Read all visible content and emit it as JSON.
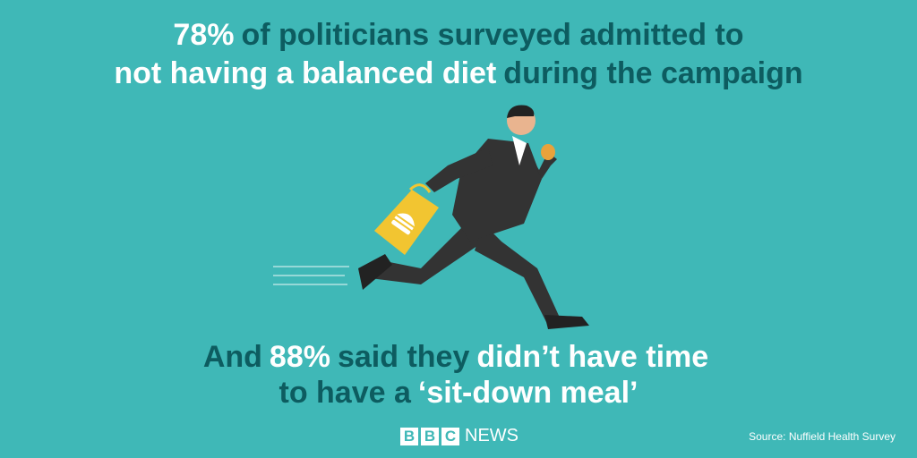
{
  "headline": [
    [
      "78%",
      "of politicians surveyed admitted to"
    ],
    [
      "not having a balanced diet",
      "during the campaign"
    ]
  ],
  "subline": [
    [
      "And",
      "88%",
      "said they",
      "didn’t have time"
    ],
    [
      "to have a",
      "‘sit-down meal’"
    ]
  ],
  "logo": {
    "letters": [
      "B",
      "B",
      "C"
    ],
    "word": "NEWS"
  },
  "source": "Source: Nuffield Health Survey"
}
